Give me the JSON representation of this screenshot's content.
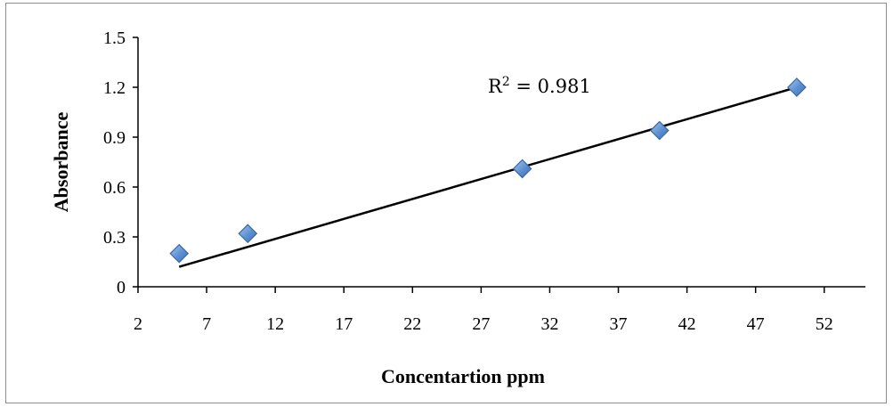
{
  "chart_data": {
    "type": "scatter",
    "title": "",
    "xlabel": "Concentartion ppm",
    "ylabel": "Absorbance",
    "xlim": [
      2,
      55
    ],
    "ylim": [
      0,
      1.5
    ],
    "x_ticks": [
      2,
      7,
      12,
      17,
      22,
      27,
      32,
      37,
      42,
      47,
      52
    ],
    "y_ticks": [
      0,
      0.3,
      0.6,
      0.9,
      1.2,
      1.5
    ],
    "x_tick_labels": [
      "2",
      "7",
      "12",
      "17",
      "22",
      "27",
      "32",
      "37",
      "42",
      "47",
      "52"
    ],
    "y_tick_labels": [
      "0",
      "0.3",
      "0.6",
      "0.9",
      "1.2",
      "1.5"
    ],
    "series": [
      {
        "marker": "diamond",
        "color": "#5b8fd0",
        "points": [
          {
            "x": 5,
            "y": 0.2
          },
          {
            "x": 10,
            "y": 0.32
          },
          {
            "x": 30,
            "y": 0.71
          },
          {
            "x": 40,
            "y": 0.94
          },
          {
            "x": 50,
            "y": 1.2
          }
        ]
      }
    ],
    "trendline": {
      "type": "linear",
      "x_range": [
        5,
        50
      ],
      "y_range": [
        0.12,
        1.2
      ],
      "color": "#000000"
    },
    "annotation": {
      "text_prefix": "R",
      "superscript": "2",
      "text_suffix": " = 0.981"
    },
    "grid": false,
    "legend": "none"
  }
}
